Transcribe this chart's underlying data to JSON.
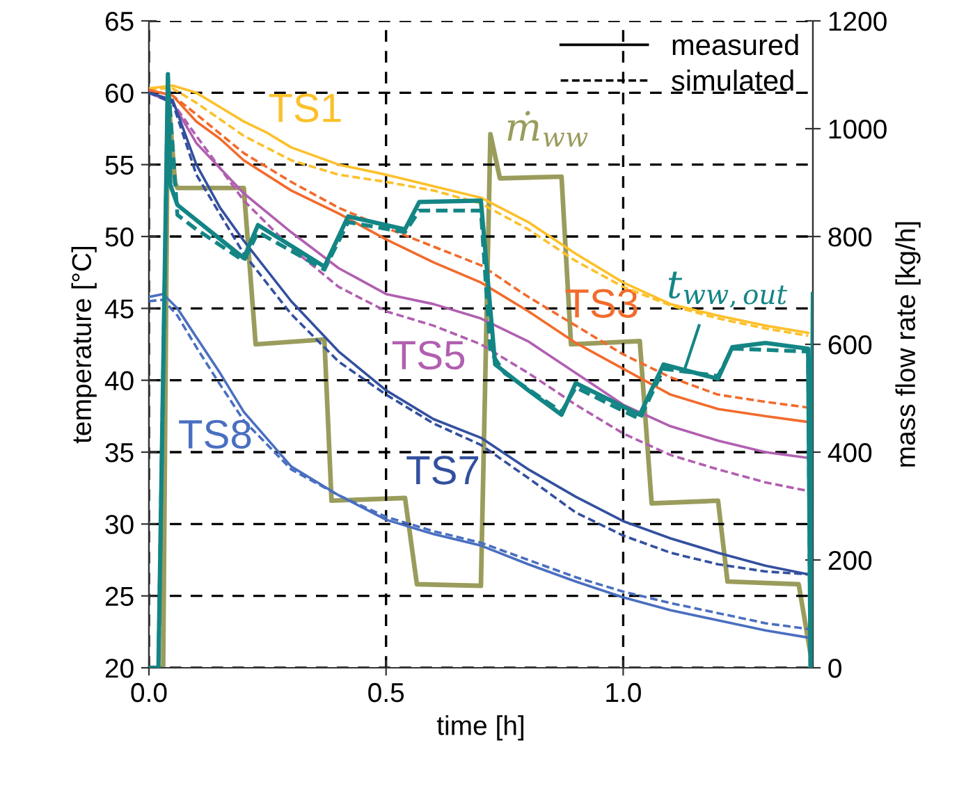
{
  "chart_data": {
    "type": "line",
    "xlabel": "time [h]",
    "ylabel": "temperature [°C]",
    "y2label": "mass flow rate [kg/h]",
    "xlim": [
      0,
      1.4
    ],
    "xticks": [
      {
        "value": 0,
        "label": "0.0"
      },
      0.5,
      {
        "value": 1,
        "label": "1.0"
      }
    ],
    "ylim": [
      20,
      65
    ],
    "yticks": [
      20,
      25,
      30,
      35,
      40,
      45,
      50,
      55,
      60,
      65
    ],
    "y2lim": [
      0,
      1200
    ],
    "y2ticks": [
      0,
      200,
      400,
      600,
      800,
      1000,
      1200
    ],
    "grid": true,
    "legend": "top right",
    "annotations": [
      "measured",
      "simulated"
    ],
    "series": [
      {
        "name": "TS1",
        "color": "#fcc02a",
        "line_style": "solid",
        "x": [
          0,
          0.05,
          0.1,
          0.15,
          0.2,
          0.25,
          0.3,
          0.4,
          0.5,
          0.6,
          0.7,
          0.8,
          0.9,
          1.0,
          1.1,
          1.2,
          1.3,
          1.39
        ],
        "values": [
          60.3,
          60.5,
          60.0,
          59.0,
          58.0,
          57.2,
          56.2,
          55.0,
          54.3,
          53.5,
          52.7,
          51.0,
          48.8,
          46.8,
          45.3,
          44.5,
          43.8,
          43.3
        ]
      },
      {
        "color": "#fcc02a",
        "line_style": "dashed",
        "x": [
          0,
          0.05,
          0.1,
          0.2,
          0.3,
          0.4,
          0.5,
          0.6,
          0.7,
          0.8,
          0.9,
          1.0,
          1.1,
          1.2,
          1.3,
          1.39
        ],
        "values": [
          60.3,
          60.3,
          59.3,
          57.0,
          55.3,
          54.3,
          53.8,
          53.2,
          52.3,
          50.5,
          48.3,
          46.5,
          45.2,
          44.3,
          43.6,
          43.1
        ]
      },
      {
        "name": "TS3",
        "color": "#f26b2c",
        "line_style": "solid",
        "x": [
          0,
          0.05,
          0.1,
          0.15,
          0.2,
          0.3,
          0.4,
          0.5,
          0.6,
          0.7,
          0.8,
          0.9,
          1.0,
          1.1,
          1.2,
          1.3,
          1.39
        ],
        "values": [
          60.2,
          59.8,
          58.0,
          56.8,
          55.3,
          53.2,
          51.6,
          49.8,
          48.2,
          46.8,
          44.8,
          42.6,
          40.8,
          39.0,
          38.0,
          37.5,
          37.1
        ]
      },
      {
        "color": "#f26b2c",
        "line_style": "dashed",
        "x": [
          0,
          0.05,
          0.1,
          0.2,
          0.3,
          0.4,
          0.5,
          0.6,
          0.7,
          0.8,
          0.9,
          1.0,
          1.1,
          1.2,
          1.3,
          1.39
        ],
        "values": [
          60.2,
          59.8,
          58.5,
          55.8,
          53.8,
          52.0,
          50.6,
          49.3,
          48.0,
          45.8,
          43.8,
          41.8,
          40.2,
          39.0,
          38.5,
          38.1
        ]
      },
      {
        "name": "TS5",
        "color": "#b15fb0",
        "line_style": "solid",
        "x": [
          0,
          0.05,
          0.1,
          0.2,
          0.3,
          0.4,
          0.5,
          0.6,
          0.7,
          0.8,
          0.9,
          1.0,
          1.1,
          1.2,
          1.3,
          1.39
        ],
        "values": [
          60.0,
          59.3,
          56.5,
          53.0,
          50.3,
          47.8,
          46.0,
          45.3,
          44.3,
          42.7,
          40.5,
          38.3,
          36.8,
          35.8,
          35.0,
          34.6
        ]
      },
      {
        "color": "#b15fb0",
        "line_style": "dashed",
        "x": [
          0,
          0.05,
          0.1,
          0.2,
          0.3,
          0.4,
          0.5,
          0.6,
          0.7,
          0.8,
          0.9,
          1.0,
          1.1,
          1.2,
          1.3,
          1.39
        ],
        "values": [
          60.0,
          59.3,
          57.0,
          52.5,
          49.2,
          46.5,
          44.8,
          43.8,
          42.5,
          40.5,
          38.3,
          36.3,
          34.8,
          33.8,
          32.9,
          32.3
        ]
      },
      {
        "name": "TS7",
        "color": "#33509f",
        "line_style": "solid",
        "x": [
          0,
          0.05,
          0.1,
          0.15,
          0.2,
          0.3,
          0.4,
          0.5,
          0.6,
          0.7,
          0.8,
          0.9,
          1.0,
          1.1,
          1.2,
          1.3,
          1.39
        ],
        "values": [
          60.0,
          59.5,
          55.0,
          52.0,
          49.7,
          45.5,
          42.0,
          39.3,
          37.3,
          36.0,
          33.8,
          31.9,
          30.2,
          29.0,
          28.0,
          27.1,
          26.5
        ]
      },
      {
        "color": "#33509f",
        "line_style": "dashed",
        "x": [
          0,
          0.05,
          0.1,
          0.2,
          0.3,
          0.4,
          0.5,
          0.6,
          0.7,
          0.8,
          0.9,
          1.0,
          1.1,
          1.2,
          1.3,
          1.39
        ],
        "values": [
          60.0,
          59.3,
          54.3,
          48.8,
          44.6,
          41.3,
          39.0,
          37.0,
          35.5,
          33.2,
          30.8,
          29.2,
          28.0,
          27.2,
          26.7,
          26.5
        ]
      },
      {
        "name": "TS8",
        "color": "#4a6fc0",
        "line_style": "solid",
        "x": [
          0,
          0.03,
          0.06,
          0.1,
          0.15,
          0.2,
          0.3,
          0.4,
          0.5,
          0.6,
          0.7,
          0.8,
          0.9,
          1.0,
          1.1,
          1.2,
          1.3,
          1.39
        ],
        "values": [
          45.8,
          46.0,
          45.0,
          43.0,
          40.5,
          37.8,
          34.0,
          32.0,
          30.3,
          29.3,
          28.5,
          27.2,
          26.0,
          24.9,
          24.0,
          23.3,
          22.6,
          22.1
        ]
      },
      {
        "color": "#4a6fc0",
        "line_style": "dashed",
        "x": [
          0,
          0.03,
          0.06,
          0.1,
          0.15,
          0.2,
          0.3,
          0.4,
          0.5,
          0.6,
          0.7,
          0.8,
          0.9,
          1.0,
          1.1,
          1.2,
          1.3,
          1.39
        ],
        "values": [
          45.5,
          45.6,
          44.5,
          42.3,
          39.7,
          37.2,
          33.8,
          32.0,
          30.5,
          29.5,
          28.7,
          27.5,
          26.3,
          25.3,
          24.5,
          23.8,
          23.1,
          22.7
        ]
      },
      {
        "name": "t$_{ww,out}$",
        "color": "#148585",
        "line_style": "solid",
        "x": [
          0,
          0.02,
          0.04,
          0.045,
          0.06,
          0.2,
          0.23,
          0.37,
          0.42,
          0.54,
          0.57,
          0.7,
          0.73,
          0.8,
          0.87,
          0.9,
          1.035,
          1.085,
          1.2,
          1.23,
          1.3,
          1.39,
          1.395,
          1.4
        ],
        "values": [
          20,
          20,
          61.3,
          53.6,
          52.2,
          48.5,
          50.8,
          47.9,
          51.4,
          50.5,
          52.4,
          52.5,
          41.1,
          39.3,
          37.6,
          39.8,
          37.6,
          41.1,
          40.1,
          42.3,
          42.6,
          42.2,
          20,
          46.0
        ]
      },
      {
        "color": "#148585",
        "line_style": "dashed",
        "x": [
          0,
          0.02,
          0.04,
          0.06,
          0.1,
          0.2,
          0.23,
          0.37,
          0.42,
          0.54,
          0.57,
          0.7,
          0.72,
          0.75,
          0.87,
          0.9,
          1.035,
          1.085,
          1.2,
          1.23,
          1.39,
          1.395
        ],
        "values": [
          20,
          20,
          61.0,
          51.5,
          50.5,
          48.3,
          50.3,
          47.7,
          51.0,
          50.3,
          51.8,
          51.8,
          42.0,
          40.5,
          37.8,
          39.5,
          37.3,
          40.8,
          40.3,
          42.2,
          42.0,
          20
        ]
      },
      {
        "name": "ṁ$_{ww}$",
        "color": "#9a9c5c",
        "line_style": "solid",
        "axis": "y2",
        "x": [
          0,
          0.03,
          0.04,
          0.055,
          0.06,
          0.2,
          0.225,
          0.37,
          0.385,
          0.54,
          0.565,
          0.7,
          0.72,
          0.74,
          0.87,
          0.89,
          1.035,
          1.06,
          1.2,
          1.22,
          1.37,
          1.4
        ],
        "values": [
          0,
          0,
          1070,
          900,
          890,
          890,
          600,
          609,
          310,
          315,
          155,
          152,
          990,
          908,
          911,
          600,
          606,
          305,
          310,
          160,
          155,
          0
        ]
      }
    ]
  }
}
